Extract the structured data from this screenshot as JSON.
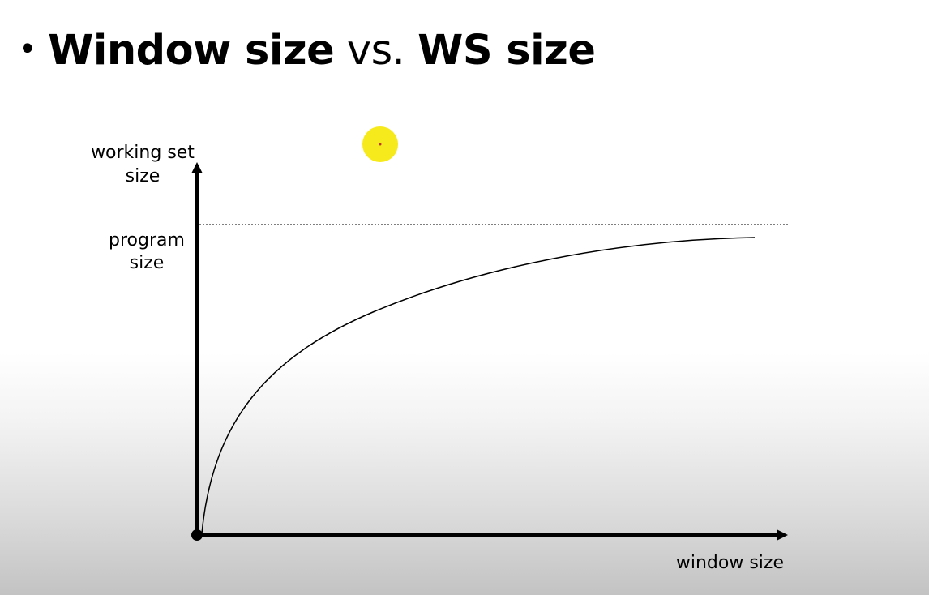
{
  "slide": {
    "bullet": "•",
    "title_part1": "Window size",
    "title_part2": " vs. ",
    "title_part3": "WS size"
  },
  "diagram": {
    "y_axis_label_line1": "working set",
    "y_axis_label_line2": "size",
    "asymptote_label_line1": "program",
    "asymptote_label_line2": "size",
    "x_axis_label": "window size"
  },
  "pointer": {
    "color": "#f7ea1c",
    "center_color": "#c0392b"
  }
}
